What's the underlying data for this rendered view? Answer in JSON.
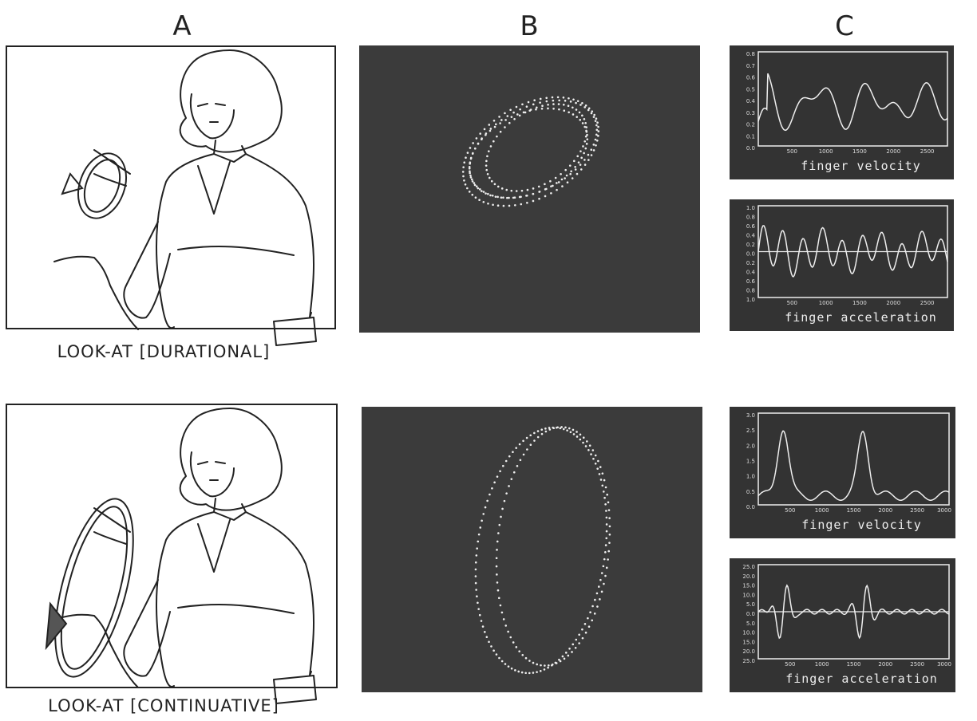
{
  "column_labels": [
    "A",
    "B",
    "C"
  ],
  "rows": [
    {
      "caption": "LOOK-AT [DURATIONAL]",
      "plots": [
        {
          "x_label": "finger velocity",
          "xticks": [
            "500",
            "1000",
            "1500",
            "2000",
            "2500"
          ],
          "yticks": [
            "0.8",
            "0.7",
            "0.6",
            "0.5",
            "0.4",
            "0.3",
            "0.2",
            "0.1",
            "0.0"
          ]
        },
        {
          "x_label": "finger acceleration",
          "xticks": [
            "500",
            "1000",
            "1500",
            "2000",
            "2500"
          ],
          "yticks": [
            "1.0",
            "0.8",
            "0.6",
            "0.4",
            "0.2",
            "0.0",
            "0.2",
            "0.4",
            "0.6",
            "0.8",
            "1.0"
          ]
        }
      ]
    },
    {
      "caption": "LOOK-AT [CONTINUATIVE]",
      "plots": [
        {
          "x_label": "finger velocity",
          "xticks": [
            "500",
            "1000",
            "1500",
            "2000",
            "2500",
            "3000"
          ],
          "yticks": [
            "3.0",
            "2.5",
            "2.0",
            "1.5",
            "1.0",
            "0.5",
            "0.0"
          ]
        },
        {
          "x_label": "finger acceleration",
          "xticks": [
            "500",
            "1000",
            "1500",
            "2000",
            "2500",
            "3000"
          ],
          "yticks": [
            "25.0",
            "20.0",
            "15.0",
            "10.0",
            "5.0",
            "0.0",
            "5.0",
            "10.0",
            "15.0",
            "20.0",
            "25.0"
          ]
        }
      ]
    }
  ]
}
